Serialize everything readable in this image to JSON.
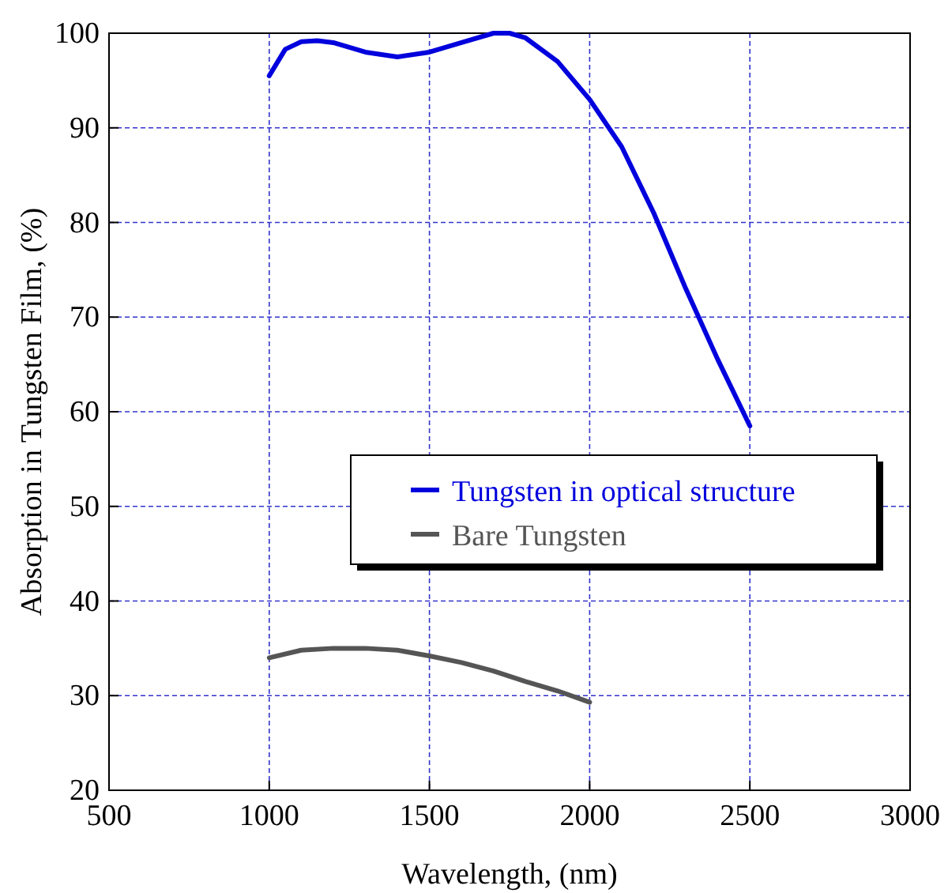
{
  "chart_data": {
    "type": "line",
    "xlabel": "Wavelength, (nm)",
    "ylabel": "Absorption in Tungsten Film, (%)",
    "xlim": [
      500,
      3000
    ],
    "xticks": [
      500,
      1000,
      1500,
      2000,
      2500,
      3000
    ],
    "ylim": [
      20,
      100
    ],
    "yticks": [
      20,
      30,
      40,
      50,
      60,
      70,
      80,
      90,
      100
    ],
    "grid": true,
    "legend": "right",
    "line_style": "solid",
    "series": [
      {
        "name": "Tungsten in optical structure",
        "color": "#0000dd",
        "x": [
          1000,
          1050,
          1100,
          1150,
          1200,
          1300,
          1400,
          1500,
          1600,
          1700,
          1750,
          1800,
          1900,
          2000,
          2100,
          2200,
          2300,
          2400,
          2500
        ],
        "values": [
          95.5,
          98.3,
          99.1,
          99.2,
          99,
          98,
          97.5,
          98,
          99,
          100,
          100,
          99.5,
          97,
          93,
          88,
          81,
          73,
          65.5,
          58.5
        ]
      },
      {
        "name": "Bare Tungsten",
        "color": "#555555",
        "x": [
          1000,
          1100,
          1200,
          1300,
          1400,
          1500,
          1600,
          1700,
          1800,
          1900,
          2000
        ],
        "values": [
          34,
          34.8,
          35,
          35,
          34.8,
          34.2,
          33.5,
          32.6,
          31.5,
          30.5,
          29.3
        ]
      }
    ]
  }
}
